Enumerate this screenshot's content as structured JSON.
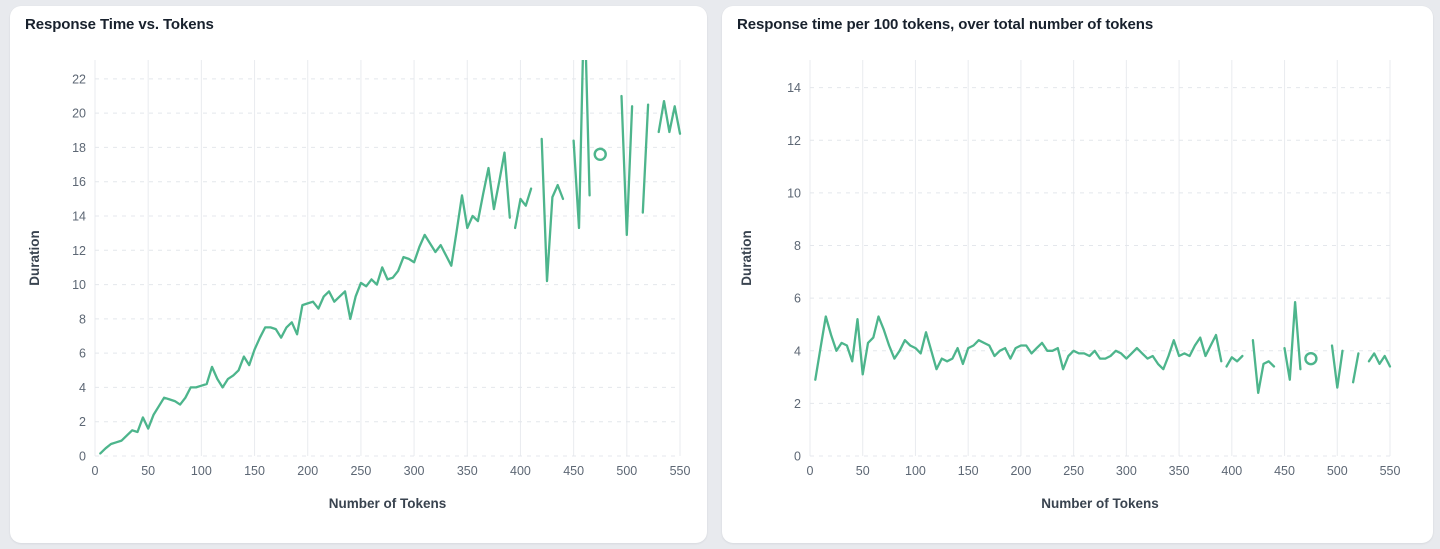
{
  "page": {
    "background_color": "#e8eaee",
    "card_color": "#ffffff"
  },
  "chart_data": [
    {
      "type": "line",
      "title": "Response Time vs. Tokens",
      "xlabel": "Number of Tokens",
      "ylabel": "Duration",
      "line_color": "#4db58c",
      "grid": true,
      "legend": false,
      "xlim": [
        0,
        550
      ],
      "ylim": [
        0,
        23.1
      ],
      "xticks": [
        0,
        50,
        100,
        150,
        200,
        250,
        300,
        350,
        400,
        450,
        500,
        550
      ],
      "yticks": [
        0,
        2,
        4,
        6,
        8,
        10,
        12,
        14,
        16,
        18,
        20,
        22
      ],
      "note": "line has gaps (missing data) after x=390; one isolated point drawn as open circle; peak at x=460 is clipped by the top of the plot",
      "segments": [
        {
          "x": [
            5,
            10,
            15,
            20,
            25,
            30,
            35,
            40,
            45,
            50,
            55,
            60,
            65,
            70,
            75,
            80,
            85,
            90,
            95,
            100,
            105,
            110,
            115,
            120,
            125,
            130,
            135,
            140,
            145,
            150,
            155,
            160,
            165,
            170,
            175,
            180,
            185,
            190,
            195,
            200,
            205,
            210,
            215,
            220,
            225,
            230,
            235,
            240,
            245,
            250,
            255,
            260,
            265,
            270,
            275,
            280,
            285,
            290,
            295,
            300,
            305,
            310,
            315,
            320,
            325,
            330,
            335,
            340,
            345,
            350,
            355,
            360,
            365,
            370,
            375,
            380,
            385,
            390
          ],
          "y": [
            0.15,
            0.45,
            0.7,
            0.8,
            0.9,
            1.2,
            1.5,
            1.4,
            2.25,
            1.6,
            2.4,
            2.9,
            3.4,
            3.3,
            3.2,
            3.0,
            3.4,
            4.0,
            4.0,
            4.1,
            4.2,
            5.2,
            4.5,
            4.0,
            4.5,
            4.7,
            5.0,
            5.8,
            5.3,
            6.2,
            6.9,
            7.5,
            7.5,
            7.4,
            6.9,
            7.5,
            7.8,
            7.1,
            8.8,
            8.9,
            9.0,
            8.6,
            9.3,
            9.6,
            9.0,
            9.3,
            9.6,
            8.0,
            9.3,
            10.1,
            9.9,
            10.3,
            10.0,
            11.0,
            10.3,
            10.4,
            10.8,
            11.6,
            11.5,
            11.3,
            12.2,
            12.9,
            12.4,
            11.9,
            12.3,
            11.7,
            11.1,
            13.1,
            15.2,
            13.3,
            14.0,
            13.7,
            15.3,
            16.8,
            14.4,
            16.0,
            17.7,
            13.9
          ]
        },
        {
          "x": [
            395,
            400,
            405,
            410
          ],
          "y": [
            13.3,
            15.0,
            14.6,
            15.6
          ]
        },
        {
          "x": [
            420,
            425,
            430,
            435,
            440
          ],
          "y": [
            18.5,
            10.2,
            15.1,
            15.8,
            15.0
          ]
        },
        {
          "x": [
            450,
            455,
            460,
            465
          ],
          "y": [
            18.4,
            13.3,
            26.9,
            15.2
          ]
        },
        {
          "x": [
            495,
            500,
            505
          ],
          "y": [
            21.0,
            12.9,
            20.4
          ]
        },
        {
          "x": [
            515,
            520
          ],
          "y": [
            14.2,
            20.5
          ]
        },
        {
          "x": [
            530,
            535,
            540,
            545,
            550
          ],
          "y": [
            18.9,
            20.7,
            18.9,
            20.4,
            18.8
          ]
        }
      ],
      "isolated_points": [
        {
          "x": 475,
          "y": 17.6
        }
      ]
    },
    {
      "type": "line",
      "title": "Response time per 100 tokens, over total number of tokens",
      "xlabel": "Number of Tokens",
      "ylabel": "Duration",
      "line_color": "#4db58c",
      "grid": true,
      "legend": false,
      "xlim": [
        0,
        550
      ],
      "ylim": [
        0,
        15.05
      ],
      "xticks": [
        0,
        50,
        100,
        150,
        200,
        250,
        300,
        350,
        400,
        450,
        500,
        550
      ],
      "yticks": [
        0,
        2,
        4,
        6,
        8,
        10,
        12,
        14
      ],
      "note": "same gap structure as left chart; isolated point drawn as open circle",
      "segments": [
        {
          "x": [
            5,
            10,
            15,
            20,
            25,
            30,
            35,
            40,
            45,
            50,
            55,
            60,
            65,
            70,
            75,
            80,
            85,
            90,
            95,
            100,
            105,
            110,
            115,
            120,
            125,
            130,
            135,
            140,
            145,
            150,
            155,
            160,
            165,
            170,
            175,
            180,
            185,
            190,
            195,
            200,
            205,
            210,
            215,
            220,
            225,
            230,
            235,
            240,
            245,
            250,
            255,
            260,
            265,
            270,
            275,
            280,
            285,
            290,
            295,
            300,
            305,
            310,
            315,
            320,
            325,
            330,
            335,
            340,
            345,
            350,
            355,
            360,
            365,
            370,
            375,
            380,
            385,
            390
          ],
          "y": [
            2.9,
            4.1,
            5.3,
            4.6,
            4.0,
            4.3,
            4.2,
            3.6,
            5.2,
            3.1,
            4.3,
            4.5,
            5.3,
            4.8,
            4.2,
            3.7,
            4.0,
            4.4,
            4.2,
            4.1,
            3.9,
            4.7,
            4.0,
            3.3,
            3.7,
            3.6,
            3.7,
            4.1,
            3.5,
            4.1,
            4.2,
            4.4,
            4.3,
            4.2,
            3.8,
            4.0,
            4.1,
            3.7,
            4.1,
            4.2,
            4.2,
            3.9,
            4.1,
            4.3,
            4.0,
            4.0,
            4.1,
            3.3,
            3.8,
            4.0,
            3.9,
            3.9,
            3.8,
            4.0,
            3.7,
            3.7,
            3.8,
            4.0,
            3.9,
            3.7,
            3.9,
            4.1,
            3.9,
            3.7,
            3.8,
            3.5,
            3.3,
            3.8,
            4.4,
            3.8,
            3.9,
            3.8,
            4.2,
            4.5,
            3.8,
            4.2,
            4.6,
            3.6
          ]
        },
        {
          "x": [
            395,
            400,
            405,
            410
          ],
          "y": [
            3.4,
            3.75,
            3.6,
            3.8
          ]
        },
        {
          "x": [
            420,
            425,
            430,
            435,
            440
          ],
          "y": [
            4.4,
            2.4,
            3.5,
            3.6,
            3.4
          ]
        },
        {
          "x": [
            450,
            455,
            460,
            465
          ],
          "y": [
            4.1,
            2.9,
            5.85,
            3.3
          ]
        },
        {
          "x": [
            495,
            500,
            505
          ],
          "y": [
            4.2,
            2.6,
            4.0
          ]
        },
        {
          "x": [
            515,
            520
          ],
          "y": [
            2.8,
            3.9
          ]
        },
        {
          "x": [
            530,
            535,
            540,
            545,
            550
          ],
          "y": [
            3.6,
            3.9,
            3.5,
            3.8,
            3.4
          ]
        }
      ],
      "isolated_points": [
        {
          "x": 475,
          "y": 3.7
        }
      ]
    }
  ]
}
